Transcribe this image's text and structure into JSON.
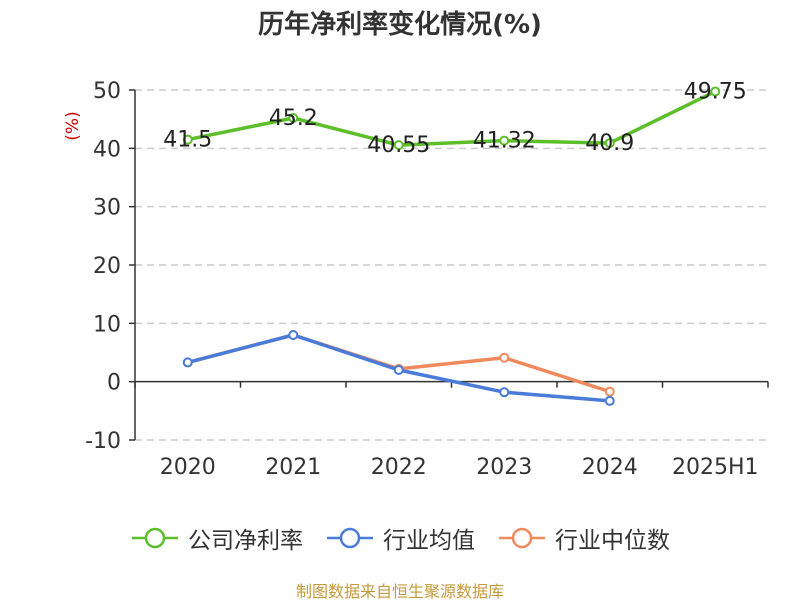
{
  "chart_data": {
    "type": "line",
    "title": "历年净利率变化情况(%)",
    "ylabel": "(%)",
    "categories": [
      "2020",
      "2021",
      "2022",
      "2023",
      "2024",
      "2025H1"
    ],
    "ylim": [
      -10,
      50
    ],
    "yticks": [
      -10,
      0,
      10,
      20,
      30,
      40,
      50
    ],
    "grid": true,
    "legend_position": "bottom",
    "series": [
      {
        "name": "公司净利率",
        "color": "#5cbf2a",
        "values": [
          41.5,
          45.2,
          40.55,
          41.32,
          40.9,
          49.75
        ],
        "labels": [
          "41.5",
          "45.2",
          "40.55",
          "41.32",
          "40.9",
          "49.75"
        ]
      },
      {
        "name": "行业均值",
        "color": "#4a7bd9",
        "values": [
          3.3,
          8.0,
          2.0,
          -1.8,
          -3.3,
          null
        ]
      },
      {
        "name": "行业中位数",
        "color": "#f08a5d",
        "values": [
          3.3,
          8.0,
          2.2,
          4.1,
          -1.7,
          null
        ]
      }
    ]
  },
  "source": "制图数据来自恒生聚源数据库"
}
